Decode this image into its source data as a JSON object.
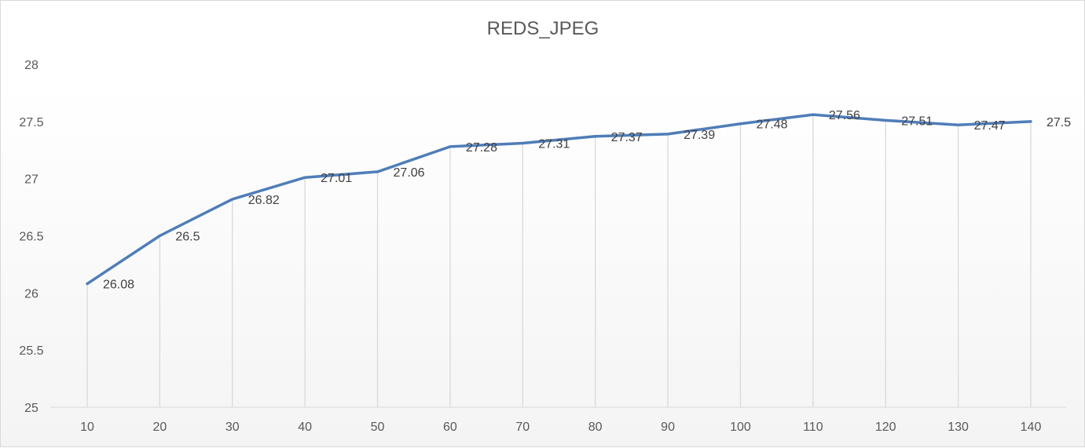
{
  "chart_data": {
    "type": "line",
    "title": "REDS_JPEG",
    "xlabel": "",
    "ylabel": "",
    "x": [
      10,
      20,
      30,
      40,
      50,
      60,
      70,
      80,
      90,
      100,
      110,
      120,
      130,
      140
    ],
    "series": [
      {
        "values": [
          26.08,
          26.5,
          26.82,
          27.01,
          27.06,
          27.28,
          27.31,
          27.37,
          27.39,
          27.48,
          27.56,
          27.51,
          27.47,
          27.5
        ],
        "color": "#4f7db8"
      }
    ],
    "data_labels": [
      "26.08",
      "26.5",
      "26.82",
      "27.01",
      "27.06",
      "27.28",
      "27.31",
      "27.37",
      "27.39",
      "27.48",
      "27.56",
      "27.51",
      "27.47",
      "27.5"
    ],
    "x_tick_labels": [
      "10",
      "20",
      "30",
      "40",
      "50",
      "60",
      "70",
      "80",
      "90",
      "100",
      "110",
      "120",
      "130",
      "140"
    ],
    "y_tick_labels": [
      "25",
      "25.5",
      "26",
      "26.5",
      "27",
      "27.5",
      "28"
    ],
    "y_ticks": [
      25,
      25.5,
      26,
      26.5,
      27,
      27.5,
      28
    ],
    "ylim": [
      25,
      28
    ],
    "grid": "vertical drop lines",
    "legend": "none"
  }
}
